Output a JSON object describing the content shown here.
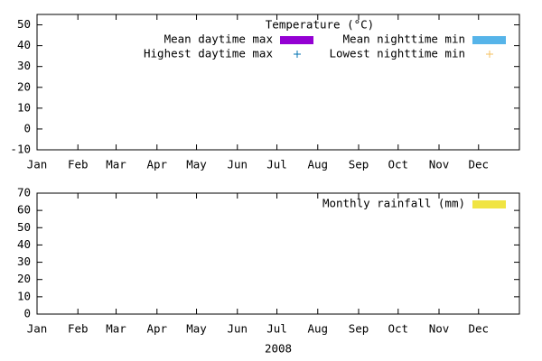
{
  "chart_data": [
    {
      "type": "bar",
      "legend_title": "Temperature (°C)",
      "categories": [
        "Jan",
        "Feb",
        "Mar",
        "Apr",
        "May",
        "Jun",
        "Jul",
        "Aug",
        "Sep",
        "Oct",
        "Nov",
        "Dec"
      ],
      "xlim": [
        0,
        366
      ],
      "xticks": [
        {
          "value": 0,
          "label": "Jan"
        },
        {
          "value": 31,
          "label": "Feb"
        },
        {
          "value": 60,
          "label": "Mar"
        },
        {
          "value": 91,
          "label": "Apr"
        },
        {
          "value": 121,
          "label": "May"
        },
        {
          "value": 152,
          "label": "Jun"
        },
        {
          "value": 182,
          "label": "Jul"
        },
        {
          "value": 213,
          "label": "Aug"
        },
        {
          "value": 244,
          "label": "Sep"
        },
        {
          "value": 274,
          "label": "Oct"
        },
        {
          "value": 305,
          "label": "Nov"
        },
        {
          "value": 335,
          "label": "Dec"
        }
      ],
      "ylim": [
        -10,
        55
      ],
      "yticks": [
        -10,
        0,
        10,
        20,
        30,
        40,
        50
      ],
      "series": [
        {
          "name": "Mean daytime max",
          "color": "#9400d3",
          "values": [
            null,
            null,
            null,
            null,
            null,
            null,
            null,
            null,
            null,
            null,
            null,
            null
          ]
        },
        {
          "name": "Mean nighttime min",
          "color": "#56b4e9",
          "values": [
            null,
            null,
            null,
            null,
            null,
            null,
            null,
            null,
            null,
            null,
            null,
            null
          ]
        },
        {
          "name": "Highest daytime max",
          "color": "#0072b2",
          "marker": "plus",
          "values": [
            null,
            null,
            null,
            null,
            null,
            null,
            null,
            null,
            null,
            null,
            null,
            null
          ]
        },
        {
          "name": "Lowest nighttime min",
          "color": "#f5c060",
          "marker": "plus",
          "values": [
            null,
            null,
            null,
            null,
            null,
            null,
            null,
            null,
            null,
            null,
            null,
            null
          ]
        }
      ]
    },
    {
      "type": "bar",
      "x_label": "2008",
      "categories": [
        "Jan",
        "Feb",
        "Mar",
        "Apr",
        "May",
        "Jun",
        "Jul",
        "Aug",
        "Sep",
        "Oct",
        "Nov",
        "Dec"
      ],
      "xlim": [
        0,
        366
      ],
      "xticks": [
        {
          "value": 0,
          "label": "Jan"
        },
        {
          "value": 31,
          "label": "Feb"
        },
        {
          "value": 60,
          "label": "Mar"
        },
        {
          "value": 91,
          "label": "Apr"
        },
        {
          "value": 121,
          "label": "May"
        },
        {
          "value": 152,
          "label": "Jun"
        },
        {
          "value": 182,
          "label": "Jul"
        },
        {
          "value": 213,
          "label": "Aug"
        },
        {
          "value": 244,
          "label": "Sep"
        },
        {
          "value": 274,
          "label": "Oct"
        },
        {
          "value": 305,
          "label": "Nov"
        },
        {
          "value": 335,
          "label": "Dec"
        }
      ],
      "ylim": [
        0,
        70
      ],
      "yticks": [
        0,
        10,
        20,
        30,
        40,
        50,
        60,
        70
      ],
      "series": [
        {
          "name": "Monthly rainfall (mm)",
          "color": "#f0e442",
          "values": [
            null,
            null,
            null,
            null,
            null,
            null,
            null,
            null,
            null,
            null,
            null,
            null
          ]
        }
      ]
    }
  ]
}
